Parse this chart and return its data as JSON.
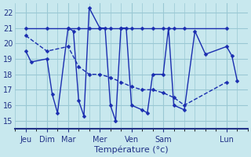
{
  "background_color": "#c8e8ee",
  "grid_color": "#9ac8d4",
  "line_color": "#1a2db0",
  "ylim": [
    14.5,
    22.6
  ],
  "yticks": [
    15,
    16,
    17,
    18,
    19,
    20,
    21,
    22
  ],
  "xlabel": "Température (°c)",
  "xlim": [
    0,
    22
  ],
  "day_tick_positions": [
    1,
    3,
    5,
    8,
    11,
    14,
    20
  ],
  "day_tick_labels": [
    "Jeu",
    "Dim",
    "Mar",
    "Mer",
    "Ven",
    "Sam",
    "Lun"
  ],
  "minor_xticks": [
    0,
    1,
    2,
    3,
    4,
    5,
    6,
    7,
    8,
    9,
    10,
    11,
    12,
    13,
    14,
    15,
    16,
    17,
    18,
    19,
    20,
    21,
    22
  ],
  "series1_x": [
    1,
    3,
    5,
    6,
    7,
    8,
    9,
    10,
    11,
    12,
    13,
    14,
    15,
    16,
    20
  ],
  "series1_y": [
    21.0,
    21.0,
    21.0,
    21.0,
    21.0,
    21.0,
    21.0,
    21.0,
    21.0,
    21.0,
    21.0,
    21.0,
    21.0,
    21.0,
    21.0
  ],
  "series2_x": [
    1,
    3,
    5,
    6,
    7,
    8,
    9,
    10,
    11,
    12,
    13,
    14,
    15,
    16,
    20
  ],
  "series2_y": [
    20.5,
    19.5,
    19.8,
    18.5,
    18.0,
    18.0,
    17.8,
    17.5,
    17.2,
    17.0,
    17.0,
    16.8,
    16.5,
    16.0,
    17.5
  ],
  "series3_x": [
    1,
    1.5,
    3,
    3.5,
    4,
    5,
    5.5,
    6,
    6.5,
    7,
    8,
    8.5,
    9,
    9.5,
    10,
    10.5,
    11,
    12,
    12.5,
    13,
    14,
    14.5,
    15,
    16,
    17,
    18,
    20,
    20.5,
    21
  ],
  "series3_y": [
    19.5,
    18.8,
    19.0,
    16.7,
    15.5,
    21.0,
    20.8,
    16.3,
    15.3,
    22.3,
    21.0,
    21.0,
    16.0,
    15.0,
    21.0,
    21.0,
    16.0,
    15.7,
    15.5,
    18.0,
    18.0,
    21.0,
    16.0,
    15.7,
    20.8,
    19.3,
    19.8,
    19.2,
    17.6
  ]
}
